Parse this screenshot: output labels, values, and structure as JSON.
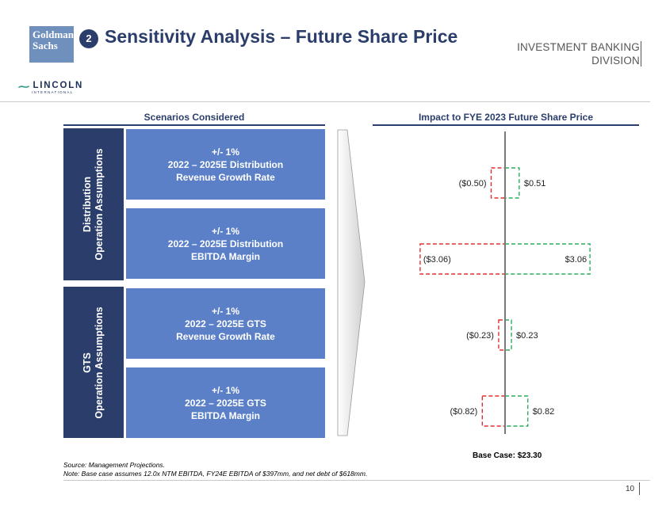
{
  "header": {
    "logo_line1": "Goldman",
    "logo_line2": "Sachs",
    "section_number": "2",
    "title": "Sensitivity Analysis – Future Share Price",
    "division_line1": "INVESTMENT BANKING",
    "division_line2": "DIVISION"
  },
  "lincoln": {
    "mark": "⁓",
    "name": "LINCOLN",
    "sub": "INTERNATIONAL"
  },
  "left_panel": {
    "heading": "Scenarios Considered",
    "groups": [
      {
        "line1": "Distribution",
        "line2": "Operation Assumptions"
      },
      {
        "line1": "GTS",
        "line2": "Operation Assumptions"
      }
    ],
    "scenarios": [
      {
        "line1": "+/- 1%",
        "line2": "2022 – 2025E Distribution",
        "line3": "Revenue Growth Rate"
      },
      {
        "line1": "+/- 1%",
        "line2": "2022 – 2025E Distribution",
        "line3": "EBITDA Margin"
      },
      {
        "line1": "+/- 1%",
        "line2": "2022 – 2025E GTS",
        "line3": "Revenue Growth Rate"
      },
      {
        "line1": "+/- 1%",
        "line2": "2022 – 2025E GTS",
        "line3": "EBITDA Margin"
      }
    ]
  },
  "chart_data": {
    "type": "bar",
    "orientation": "horizontal-tornado",
    "title": "Impact to FYE 2023 Future Share Price",
    "categories": [
      "2022 – 2025E Distribution Revenue Growth Rate",
      "2022 – 2025E Distribution EBITDA Margin",
      "2022 – 2025E GTS Revenue Growth Rate",
      "2022 – 2025E GTS EBITDA Margin"
    ],
    "series": [
      {
        "name": "-1%",
        "values": [
          -0.5,
          -3.06,
          -0.23,
          -0.82
        ],
        "labels": [
          "($0.50)",
          "($3.06)",
          "($0.23)",
          "($0.82)"
        ],
        "color": "#e03131"
      },
      {
        "name": "+1%",
        "values": [
          0.51,
          3.06,
          0.23,
          0.82
        ],
        "labels": [
          "$0.51",
          "$3.06",
          "$0.23",
          "$0.82"
        ],
        "color": "#2fae5b"
      }
    ],
    "xlim": [
      -3.2,
      3.2
    ],
    "axis_color": "#7a7a7a",
    "base_case_label": "Base Case: $23.30"
  },
  "footer": {
    "source": "Source: Management Projections.",
    "note": "Note: Base case assumes 12.0x NTM EBITDA, FY24E EBITDA of $397mm, and net debt of $618mm.",
    "page_number": "10"
  }
}
